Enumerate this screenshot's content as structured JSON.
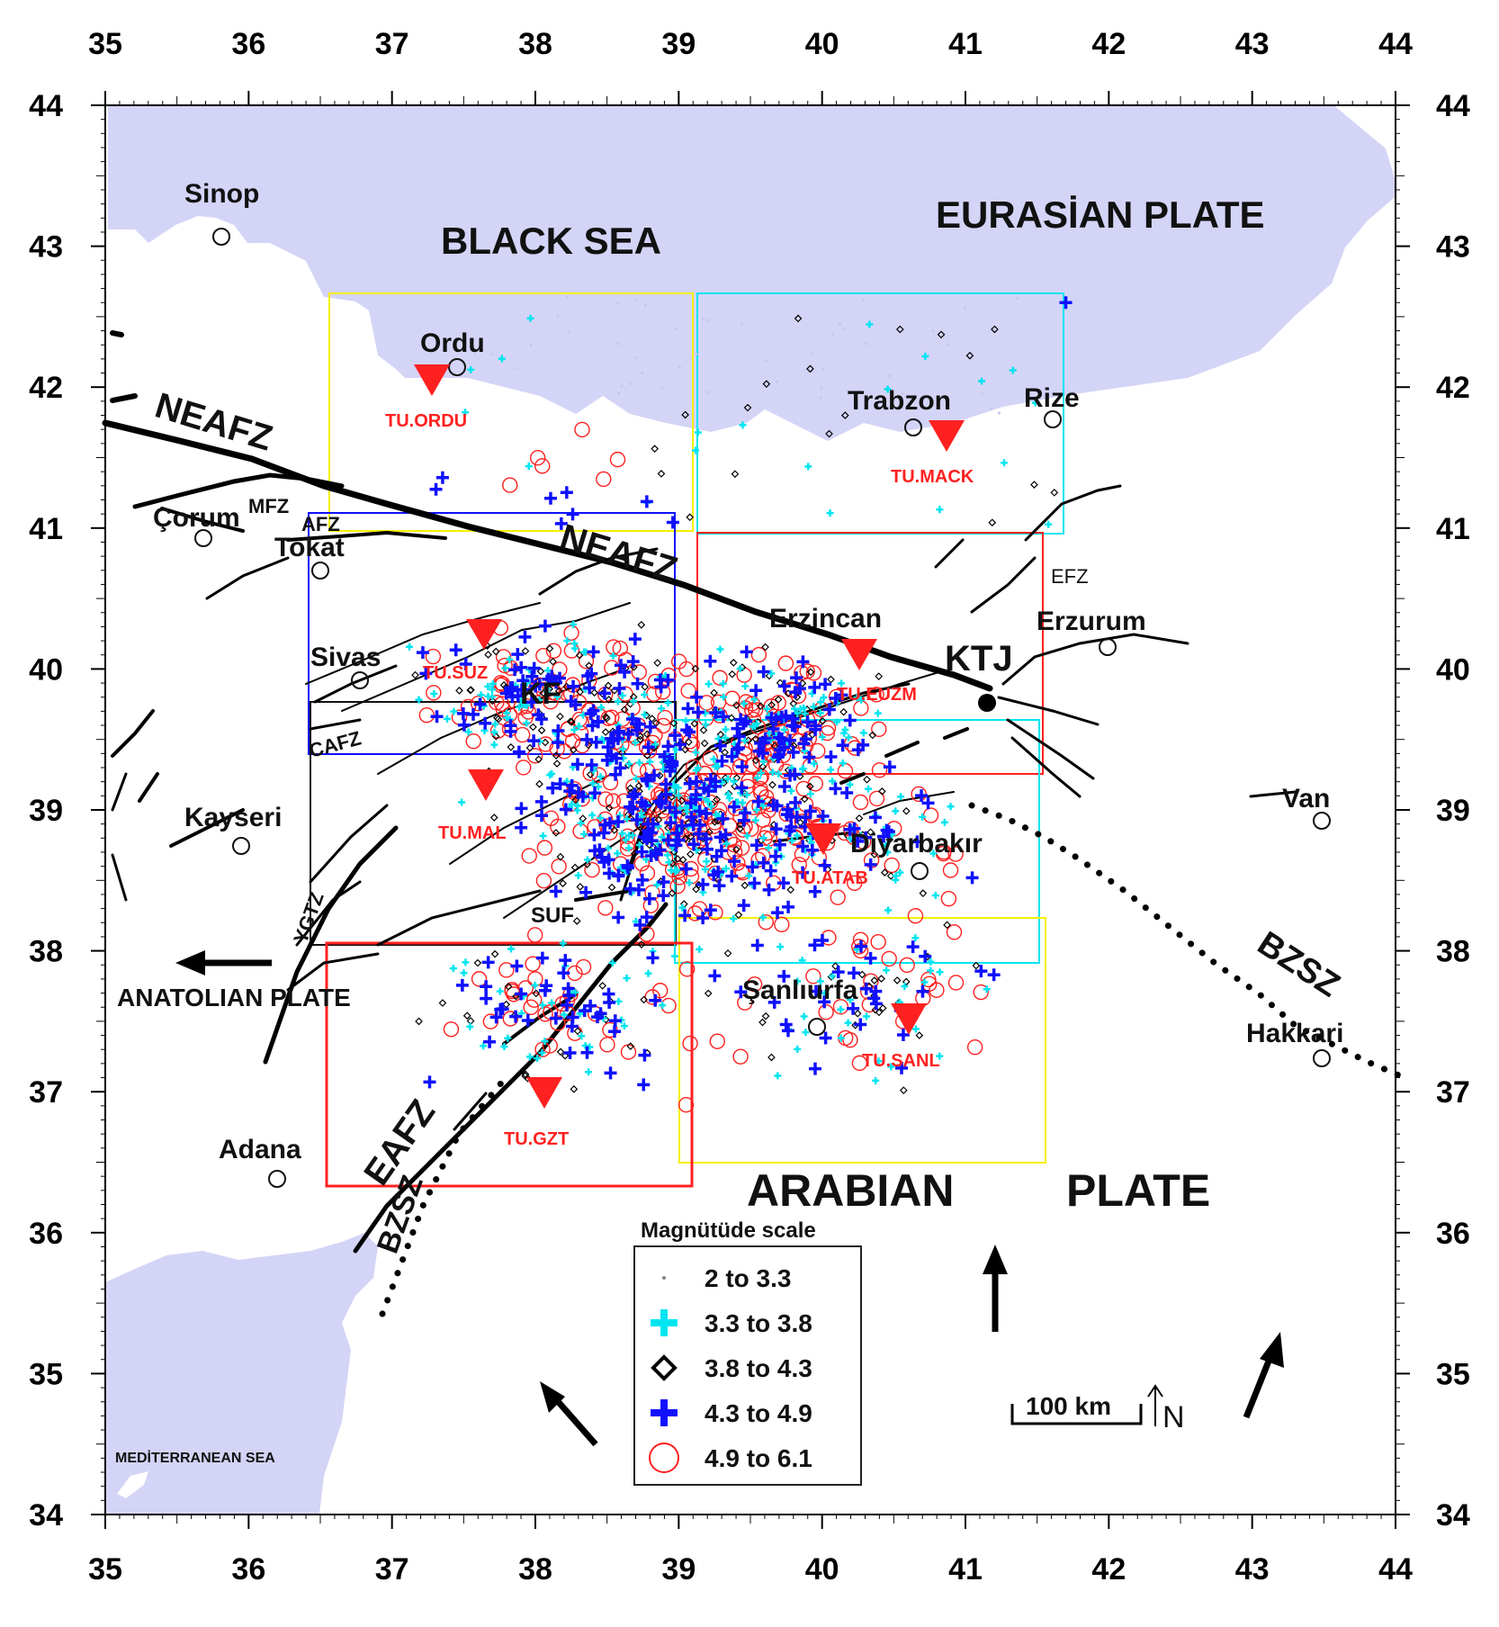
{
  "map": {
    "lon_range": [
      35,
      44
    ],
    "lat_range": [
      34,
      44
    ],
    "x_ticks": [
      "35",
      "36",
      "37",
      "38",
      "39",
      "40",
      "41",
      "42",
      "43",
      "44"
    ],
    "y_ticks": [
      "44",
      "43",
      "42",
      "41",
      "40",
      "39",
      "38",
      "37",
      "36",
      "35",
      "34"
    ],
    "colors": {
      "sea": "#d4d4f7",
      "cyan": "#00e5f0",
      "blue": "#1010ff",
      "red": "#ff2020",
      "yellow": "#f5f000",
      "black": "#000000"
    }
  },
  "labels": {
    "black_sea": "BLACK SEA",
    "eurasian_plate": "EURASİAN PLATE",
    "anatolian_plate": "ANATOLIAN PLATE",
    "arabian": "ARABIAN",
    "plate": "PLATE",
    "mediterranean": "MEDİTERRANEAN SEA",
    "ktj": "KTJ"
  },
  "cities": {
    "sinop": "Sinop",
    "ordu": "Ordu",
    "trabzon": "Trabzon",
    "rize": "Rize",
    "corum": "Çorum",
    "tokat": "Tokat",
    "sivas": "Sivas",
    "erzincan": "Erzincan",
    "erzurum": "Erzurum",
    "kayseri": "Kayseri",
    "van": "Van",
    "diyarbakir": "Diyarbakır",
    "sanliurfa": "Şanlıurfa",
    "hakkari": "Hakkari",
    "adana": "Adana"
  },
  "faults": {
    "neafz_west": "NEAFZ",
    "neafz_east": "NEAFZ",
    "mfz": "MFZ",
    "afz": "AFZ",
    "efz": "EFZ",
    "kf": "KF",
    "cafz": "CAFZ",
    "ygtz": "YGTZ",
    "suf": "SUF",
    "eafz": "EAFZ",
    "bzsz_sw": "BZSZ",
    "bzsz_se": "BZSZ"
  },
  "stations": {
    "ordu": "TU.ORDU",
    "mack": "TU.MACK",
    "suz": "TU.SUZ",
    "euzm": "TU.EUZM",
    "mal": "TU.MAL",
    "atab": "TU.ATAB",
    "sanl": "TU.SANL",
    "gzt": "TU.GZT"
  },
  "legend": {
    "title": "Magnütüde scale",
    "items": [
      "2  to  3.3",
      "3.3  to  3.8",
      "3.8  to  4.3",
      "4.3  to  4.9",
      "4.9  to  6.1"
    ]
  },
  "scale_bar": {
    "label": "100 km",
    "north": "N"
  }
}
